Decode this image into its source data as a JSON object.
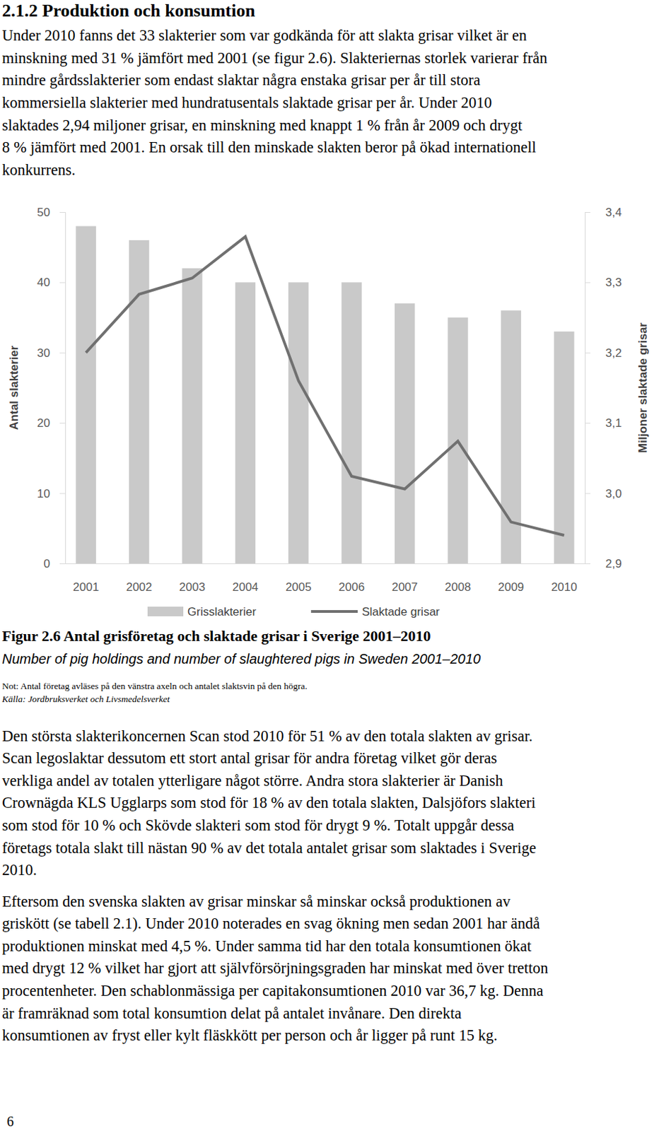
{
  "heading": "2.1.2 Produktion och konsumtion",
  "paragraphs": [
    [
      "Under 2010 fanns det 33 slakterier som var godkända för att slakta grisar vilket är en",
      "minskning med 31 % jämfört med 2001 (se figur 2.6). Slakteriernas storlek varierar från",
      "mindre gårdsslakterier som endast slaktar några enstaka grisar per år till stora",
      "kommersiella slakterier med hundratusentals slaktade grisar per år. Under 2010",
      "slaktades 2,94 miljoner grisar, en minskning med knappt 1 % från år 2009 och drygt",
      "8 % jämfört med 2001. En orsak till den minskade slakten beror på ökad internationell",
      "konkurrens."
    ],
    [
      "Den största slakterikoncernen Scan stod 2010 för 51 % av den totala slakten av grisar.",
      "Scan legoslaktar dessutom ett stort antal grisar för andra företag vilket gör deras",
      "verkliga andel av totalen ytterligare något större. Andra stora slakterier är Danish",
      "Crownägda KLS Ugglarps som stod för 18 % av den totala slakten, Dalsjöfors slakteri",
      "som stod för 10 % och Skövde slakteri som stod för drygt 9 %. Totalt uppgår dessa",
      "företags totala slakt till nästan 90 % av det totala antalet grisar som slaktades i Sverige",
      "2010."
    ],
    [
      "Eftersom den svenska slakten av grisar minskar så minskar också produktionen av",
      "griskött (se tabell 2.1). Under 2010 noterades en svag ökning men sedan 2001 har ändå",
      "produktionen minskat med 4,5 %. Under samma tid har den totala konsumtionen ökat",
      "med drygt 12 % vilket har gjort att självförsörjningsgraden har minskat med över tretton",
      "procentenheter. Den schablonmässiga per capitakonsumtionen 2010 var 36,7 kg. Denna",
      "är framräknad som total konsumtion delat på antalet invånare. Den direkta",
      "konsumtionen av fryst eller kylt fläskkött per person och år ligger på runt 15 kg."
    ]
  ],
  "chart_data": {
    "type": "bar",
    "categories": [
      "2001",
      "2002",
      "2003",
      "2004",
      "2005",
      "2006",
      "2007",
      "2008",
      "2009",
      "2010"
    ],
    "series": [
      {
        "name": "Grisslakterier",
        "type": "bar",
        "color": "#c9c9c9",
        "values": [
          48,
          46,
          42,
          40,
          40,
          40,
          37,
          35,
          36,
          33
        ]
      },
      {
        "name": "Slaktade grisar",
        "type": "line",
        "axis": "y2",
        "color": "#707070",
        "values": [
          3.2,
          3.283,
          3.306,
          3.365,
          3.16,
          3.024,
          3.006,
          3.074,
          2.959,
          2.94
        ]
      }
    ],
    "y_label": "Antal slakterier",
    "y2_label": "Miljoner slaktade grisar",
    "ylim": [
      0,
      50
    ],
    "yticks": [
      0,
      10,
      20,
      30,
      40,
      50
    ],
    "y2lim": [
      2.9,
      3.4
    ],
    "y2ticks": [
      {
        "value": 2.9,
        "label": "2,9"
      },
      {
        "value": 3.0,
        "label": "3,0"
      },
      {
        "value": 3.1,
        "label": "3,1"
      },
      {
        "value": 3.2,
        "label": "3,2"
      },
      {
        "value": 3.3,
        "label": "3,3"
      },
      {
        "value": 3.4,
        "label": "3,4"
      }
    ],
    "grid": false,
    "legend": "bottom"
  },
  "figure": {
    "caption": "Figur 2.6 Antal grisföretag och slaktade grisar i Sverige 2001–2010",
    "caption_en": "Number of pig holdings and number of slaughtered pigs in Sweden 2001–2010",
    "note": "Not: Antal företag avläses på den vänstra axeln och antalet slaktsvin på den högra.",
    "source": "Källa: Jordbruksverket och Livsmedelsverket"
  },
  "page_number": "6"
}
